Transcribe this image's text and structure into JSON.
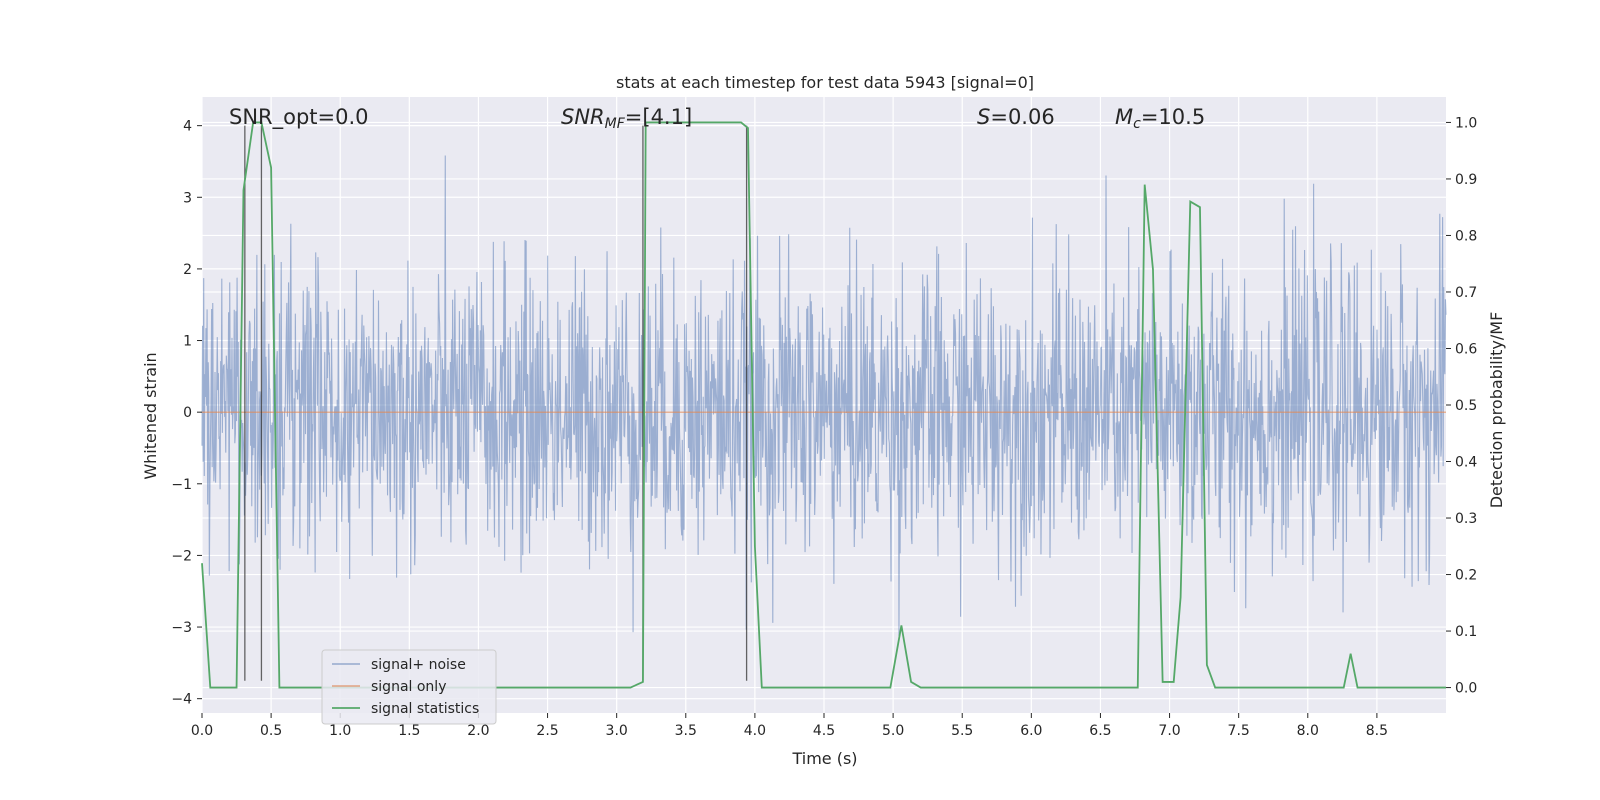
{
  "chart_data": {
    "type": "line",
    "title": "stats at each timestep for test data 5943 [signal=0]",
    "xlabel": "Time (s)",
    "ylabel": "Whitened strain",
    "ylabel_right": "Detection probability/MF",
    "xlim": [
      0,
      9.0
    ],
    "ylim": [
      -4.2,
      4.4
    ],
    "ylim_right": [
      -0.045,
      1.045
    ],
    "x_ticks": [
      "0.0",
      "0.5",
      "1.0",
      "1.5",
      "2.0",
      "2.5",
      "3.0",
      "3.5",
      "4.0",
      "4.5",
      "5.0",
      "5.5",
      "6.0",
      "6.5",
      "7.0",
      "7.5",
      "8.0",
      "8.5"
    ],
    "x_tick_values": [
      0,
      0.5,
      1.0,
      1.5,
      2.0,
      2.5,
      3.0,
      3.5,
      4.0,
      4.5,
      5.0,
      5.5,
      6.0,
      6.5,
      7.0,
      7.5,
      8.0,
      8.5
    ],
    "y_ticks": [
      "−4",
      "−3",
      "−2",
      "−1",
      "0",
      "1",
      "2",
      "3",
      "4"
    ],
    "y_tick_values": [
      -4,
      -3,
      -2,
      -1,
      0,
      1,
      2,
      3,
      4
    ],
    "y_ticks_right": [
      "0.0",
      "0.1",
      "0.2",
      "0.3",
      "0.4",
      "0.5",
      "0.6",
      "0.7",
      "0.8",
      "0.9",
      "1.0"
    ],
    "y_tick_values_right": [
      0,
      0.1,
      0.2,
      0.3,
      0.4,
      0.5,
      0.6,
      0.7,
      0.8,
      0.9,
      1.0
    ],
    "grid": true,
    "legend_placement": "lower-left",
    "legend": [
      "signal+ noise",
      "signal only",
      "signal statistics"
    ],
    "colors": {
      "signal_noise": "#4c72b0",
      "signal_only": "#dd8452",
      "statistics": "#55a868",
      "vline": "#333333",
      "background": "#eaeaf2"
    },
    "annotations": [
      {
        "text": "SNR_opt=0.0",
        "x": 0.2
      },
      {
        "text": "SNR_MF=[4.1]",
        "x": 2.6
      },
      {
        "text": "S=0.06",
        "x": 5.6
      },
      {
        "text": "M_c=10.5",
        "x": 6.6
      }
    ],
    "vertical_lines": [
      {
        "x": 0.31,
        "y_top": 4.0,
        "y_bottom": -3.75
      },
      {
        "x": 0.43,
        "y_top": 4.0,
        "y_bottom": -3.75
      },
      {
        "x": 3.19,
        "y_top": 4.0,
        "y_bottom": -3.75
      },
      {
        "x": 3.94,
        "y_top": 4.0,
        "y_bottom": -3.75
      }
    ],
    "series": [
      {
        "name": "signal+ noise",
        "noise_sigma": 1.0,
        "x_range": [
          0,
          9.0
        ],
        "samples": 2200
      },
      {
        "name": "signal only",
        "x": [
          0,
          9.0
        ],
        "y": [
          0,
          0
        ]
      },
      {
        "name": "signal statistics",
        "x": [
          0.0,
          0.06,
          0.25,
          0.3,
          0.37,
          0.43,
          0.5,
          0.56,
          0.62,
          3.1,
          3.19,
          3.21,
          3.26,
          3.8,
          3.9,
          3.95,
          4.0,
          4.05,
          4.4,
          4.98,
          5.06,
          5.13,
          5.2,
          6.7,
          6.77,
          6.82,
          6.88,
          6.95,
          7.03,
          7.08,
          7.15,
          7.22,
          7.27,
          7.33,
          8.26,
          8.31,
          8.36,
          9.0
        ],
        "y": [
          0.22,
          0.0,
          0.0,
          0.88,
          1.0,
          1.0,
          0.92,
          0.0,
          0.0,
          0.0,
          0.01,
          1.0,
          1.0,
          1.0,
          1.0,
          0.99,
          0.25,
          0.0,
          0.0,
          0.0,
          0.11,
          0.01,
          0.0,
          0.0,
          0.0,
          0.89,
          0.74,
          0.01,
          0.01,
          0.16,
          0.86,
          0.85,
          0.04,
          0.0,
          0.0,
          0.06,
          0.0,
          0.0
        ]
      }
    ]
  }
}
